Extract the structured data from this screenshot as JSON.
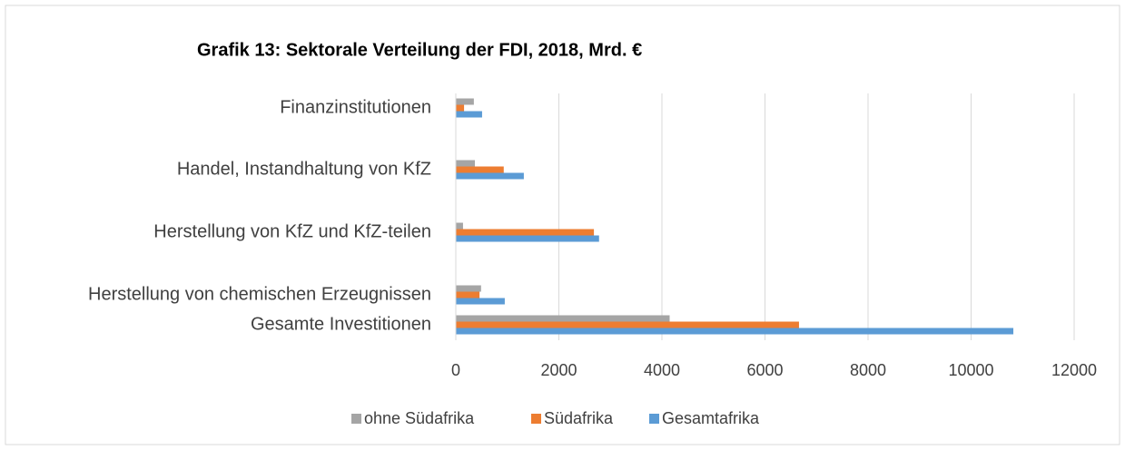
{
  "chart_data": {
    "type": "hbar",
    "title": "Grafik 13: Sektorale Verteilung der FDI, 2018, Mrd. €",
    "categories": [
      "Finanzinstitutionen",
      "Handel, Instandhaltung von KfZ",
      "Herstellung von KfZ und KfZ-teilen",
      "Herstellung von chemischen Erzeugnissen",
      "Gesamte Investitionen"
    ],
    "series": [
      {
        "name": "ohne Südafrika",
        "color": "#a5a5a5",
        "values": [
          350,
          370,
          140,
          490,
          4150
        ]
      },
      {
        "name": "Südafrika",
        "color": "#ed7d31",
        "values": [
          160,
          930,
          2680,
          460,
          6660
        ]
      },
      {
        "name": "Gesamtafrika",
        "color": "#5b9bd5",
        "values": [
          510,
          1320,
          2780,
          950,
          10820
        ]
      }
    ],
    "xlim": [
      0,
      12000
    ],
    "xticks": [
      0,
      2000,
      4000,
      6000,
      8000,
      10000,
      12000
    ],
    "grid": true
  }
}
